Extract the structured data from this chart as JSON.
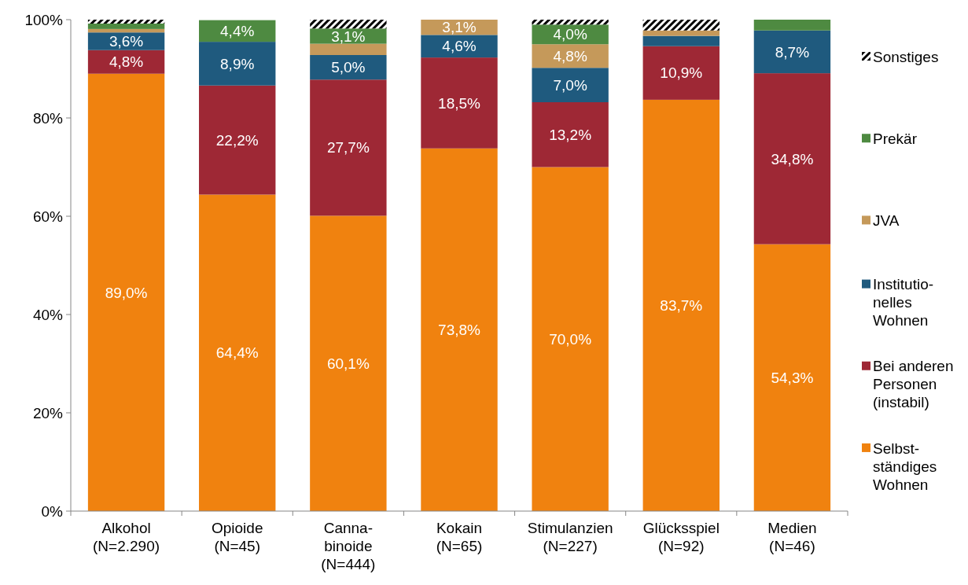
{
  "chart_data": {
    "type": "bar",
    "stacked": true,
    "legend": "right",
    "grid": false,
    "categories": [
      "Alkohol\n(N=2.290)",
      "Opioide\n(N=45)",
      "Canna-\nbinoide\n(N=444)",
      "Kokain\n(N=65)",
      "Stimulanzien\n(N=227)",
      "Glücksspiel\n(N=92)",
      "Medien\n(N=46)"
    ],
    "ylim": [
      0,
      100
    ],
    "yticks": [
      {
        "value": 0,
        "label": "0%"
      },
      {
        "value": 20,
        "label": "20%"
      },
      {
        "value": 40,
        "label": "40%"
      },
      {
        "value": 60,
        "label": "60%"
      },
      {
        "value": 80,
        "label": "80%"
      },
      {
        "value": 100,
        "label": "100%"
      }
    ],
    "series": [
      {
        "name": "Selbst-\nständiges\nWohnen",
        "color": "#f0820f",
        "values": [
          89.0,
          64.4,
          60.1,
          73.8,
          70.0,
          83.7,
          54.3
        ],
        "value_labels": [
          "89,0%",
          "64,4%",
          "60,1%",
          "73,8%",
          "70,0%",
          "83,7%",
          "54,3%"
        ]
      },
      {
        "name": "Bei anderen\nPersonen\n(instabil)",
        "color": "#9e2835",
        "values": [
          4.8,
          22.2,
          27.7,
          18.5,
          13.2,
          10.9,
          34.8
        ],
        "value_labels": [
          "4,8%",
          "22,2%",
          "27,7%",
          "18,5%",
          "13,2%",
          "10,9%",
          "34,8%"
        ]
      },
      {
        "name": "Institutio-\nnelles\nWohnen",
        "color": "#1f5a7e",
        "values": [
          3.6,
          8.9,
          5.0,
          4.6,
          7.0,
          2.1,
          8.7
        ],
        "value_labels": [
          "3,6%",
          "8,9%",
          "5,0%",
          "4,6%",
          "7,0%",
          null,
          "8,7%"
        ]
      },
      {
        "name": "JVA",
        "color": "#c5995a",
        "values": [
          0.7,
          0,
          2.3,
          3.1,
          4.8,
          1.1,
          0
        ],
        "value_labels": [
          null,
          null,
          null,
          "3,1%",
          "4,8%",
          null,
          null
        ]
      },
      {
        "name": "Prekär",
        "color": "#4e8a41",
        "values": [
          1.1,
          4.4,
          3.1,
          0,
          4.0,
          0,
          2.2
        ],
        "value_labels": [
          null,
          "4,4%",
          "3,1%",
          null,
          "4,0%",
          null,
          null
        ]
      },
      {
        "name": "Sonstiges",
        "color": "#000000",
        "values": [
          0.8,
          0,
          1.8,
          0,
          1.0,
          2.2,
          0
        ],
        "value_labels": [
          null,
          null,
          null,
          null,
          null,
          null,
          null
        ]
      }
    ]
  }
}
